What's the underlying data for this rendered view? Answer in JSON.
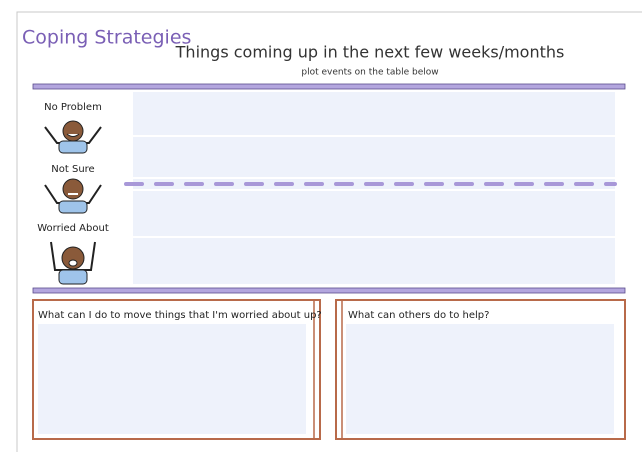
{
  "header": {
    "heading": "Coping Strategies",
    "title": "Things coming up in the next few weeks/months",
    "subtitle": "plot events on the table below"
  },
  "scale": {
    "labels": [
      "No Problem",
      "Not Sure",
      "Worried About"
    ]
  },
  "boxes": [
    {
      "prompt": "What can I do to move things that I'm worried about up?"
    },
    {
      "prompt": "What can others do to help?"
    }
  ]
}
